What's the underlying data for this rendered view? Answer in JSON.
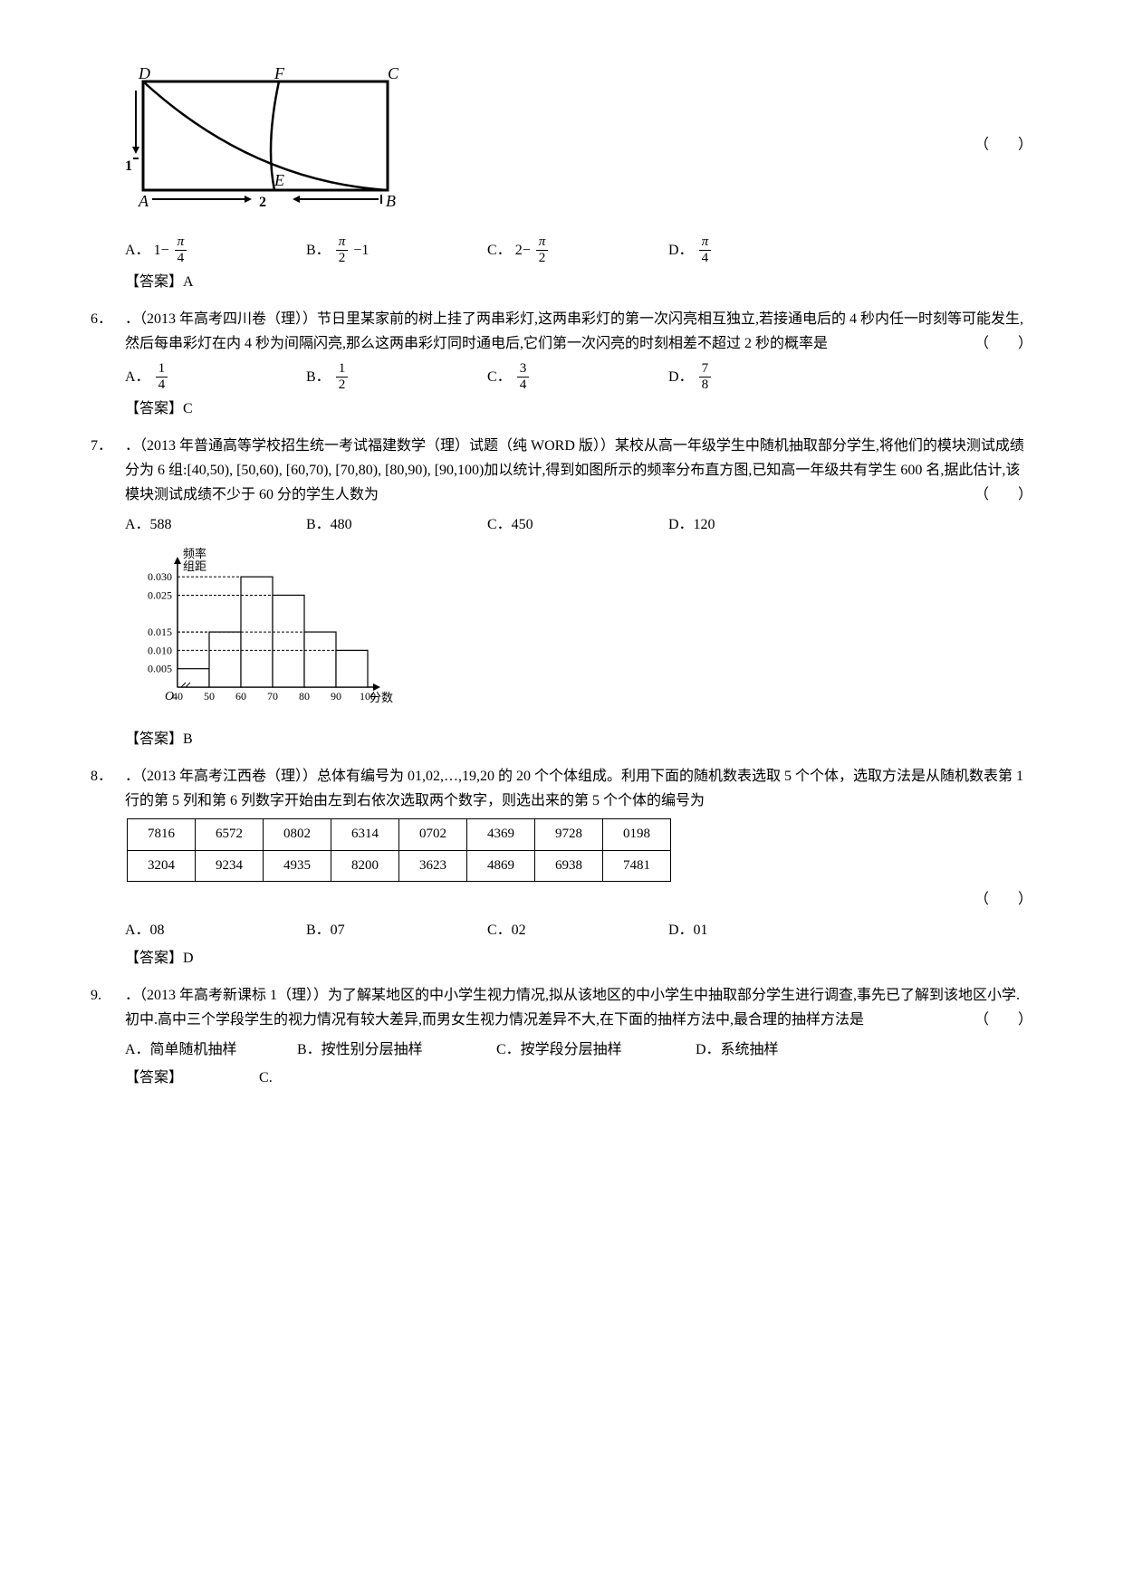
{
  "q5_figure": {
    "D": "D",
    "F": "F",
    "C": "C",
    "A": "A",
    "E": "E",
    "B": "B",
    "tick1": "1",
    "tick2": "2"
  },
  "q5": {
    "paren": "（　　）",
    "choices": {
      "A_label": "A．",
      "A_pre": "1−",
      "A_num": "π",
      "A_den": "4",
      "B_label": "B．",
      "B_num": "π",
      "B_den": "2",
      "B_post": "−1",
      "C_label": "C．",
      "C_pre": "2−",
      "C_num": "π",
      "C_den": "2",
      "D_label": "D．",
      "D_num": "π",
      "D_den": "4"
    },
    "answer": "【答案】A"
  },
  "q6": {
    "num": "6．",
    "text": "．（2013 年高考四川卷（理））节日里某家前的树上挂了两串彩灯,这两串彩灯的第一次闪亮相互独立,若接通电后的 4 秒内任一时刻等可能发生,然后每串彩灯在内 4 秒为间隔闪亮,那么这两串彩灯同时通电后,它们第一次闪亮的时刻相差不超过 2 秒的概率是",
    "paren": "（　　）",
    "choices": {
      "A_label": "A．",
      "A_num": "1",
      "A_den": "4",
      "B_label": "B．",
      "B_num": "1",
      "B_den": "2",
      "C_label": "C．",
      "C_num": "3",
      "C_den": "4",
      "D_label": "D．",
      "D_num": "7",
      "D_den": "8"
    },
    "answer": "【答案】C"
  },
  "q7": {
    "num": "7．",
    "text": "．（2013 年普通高等学校招生统一考试福建数学（理）试题（纯 WORD 版））某校从高一年级学生中随机抽取部分学生,将他们的模块测试成绩分为 6 组:[40,50), [50,60), [60,70), [70,80), [80,90), [90,100)加以统计,得到如图所示的频率分布直方图,已知高一年级共有学生 600 名,据此估计,该模块测试成绩不少于 60 分的学生人数为",
    "paren": "（　　）",
    "choices": {
      "A": "A．588",
      "B": "B．480",
      "C": "C．450",
      "D": "D．120"
    },
    "answer": "【答案】B",
    "hist": {
      "ylab": "频率\\n组距",
      "xlab": "分数",
      "O": "O",
      "yticks": [
        "0.005",
        "0.010",
        "0.015",
        "0.025",
        "0.030"
      ],
      "xticks": [
        "40",
        "50",
        "60",
        "70",
        "80",
        "90",
        "100"
      ],
      "bars": [
        0.005,
        0.015,
        0.03,
        0.025,
        0.015,
        0.01
      ],
      "ylim": [
        0,
        0.032
      ],
      "bar_color": "#ffffff",
      "line_color": "#000000"
    }
  },
  "q8": {
    "num": "8．",
    "text": "．（2013 年高考江西卷（理））总体有编号为 01,02,…,19,20 的 20 个个体组成。利用下面的随机数表选取 5 个个体，选取方法是从随机数表第 1 行的第 5 列和第 6 列数字开始由左到右依次选取两个数字，则选出来的第 5 个个体的编号为",
    "table": {
      "rows": [
        [
          "7816",
          "6572",
          "0802",
          "6314",
          "0702",
          "4369",
          "9728",
          "0198"
        ],
        [
          "3204",
          "9234",
          "4935",
          "8200",
          "3623",
          "4869",
          "6938",
          "7481"
        ]
      ]
    },
    "paren": "（　　）",
    "choices": {
      "A": "A．08",
      "B": "B．07",
      "C": "C．02",
      "D": "D．01"
    },
    "answer": "【答案】D"
  },
  "q9": {
    "num": "9.",
    "text": "．（2013 年高考新课标 1（理））为了解某地区的中小学生视力情况,拟从该地区的中小学生中抽取部分学生进行调查,事先已了解到该地区小学.初中.高中三个学段学生的视力情况有较大差异,而男女生视力情况差异不大,在下面的抽样方法中,最合理的抽样方法是",
    "paren": "（　　）",
    "choices": {
      "A": "A．简单随机抽样",
      "B": "B．按性别分层抽样",
      "C": "C．按学段分层抽样",
      "D": "D．系统抽样"
    },
    "answer_label": "【答案】",
    "answer": "C."
  }
}
